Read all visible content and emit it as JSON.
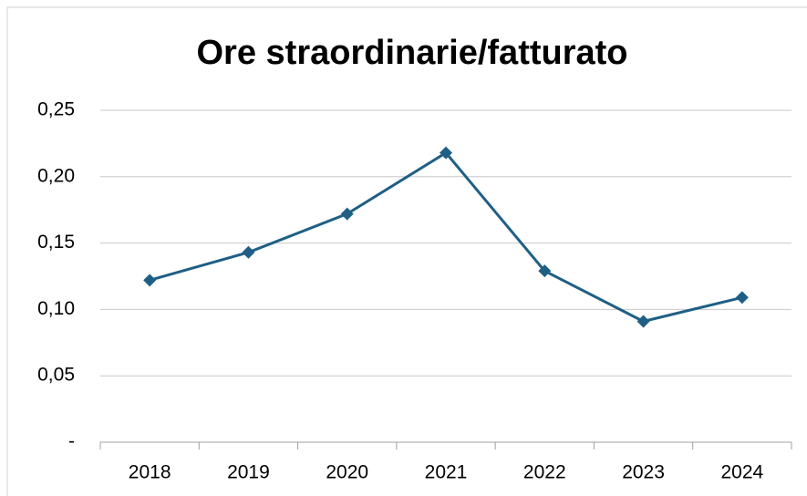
{
  "chart_data": {
    "type": "line",
    "title": "Ore straordinarie/fatturato",
    "categories": [
      "2018",
      "2019",
      "2020",
      "2021",
      "2022",
      "2023",
      "2024"
    ],
    "values": [
      0.122,
      0.143,
      0.172,
      0.218,
      0.129,
      0.091,
      0.109
    ],
    "color": "#1f5f85",
    "ylim": [
      0,
      0.25
    ],
    "yticks": [
      {
        "value": 0,
        "label": "-"
      },
      {
        "value": 0.05,
        "label": "0,05"
      },
      {
        "value": 0.1,
        "label": "0,10"
      },
      {
        "value": 0.15,
        "label": "0,15"
      },
      {
        "value": 0.2,
        "label": "0,20"
      },
      {
        "value": 0.25,
        "label": "0,25"
      }
    ],
    "grid": true
  }
}
